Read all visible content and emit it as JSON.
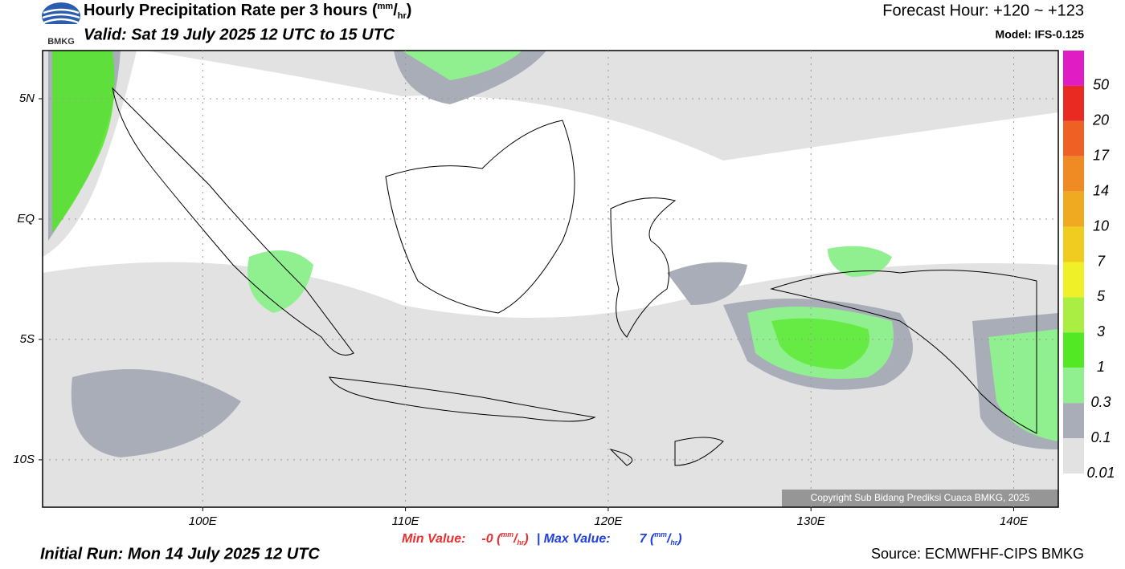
{
  "header": {
    "title": "Hourly Precipitation Rate per 3 hours",
    "unit": [
      "(",
      "mm",
      "/",
      "hr",
      ")"
    ],
    "valid": "Valid: Sat 19 July 2025 12 UTC to 15 UTC",
    "forecast_hour": "Forecast Hour: +120 ~ +123",
    "model": "Model: IFS-0.125",
    "logo_text": "BMKG"
  },
  "map": {
    "lon_range": [
      92.1,
      142.2
    ],
    "lat_range": [
      -11.97,
      7
    ],
    "lon_ticks": [
      {
        "value": 100,
        "label": "100E"
      },
      {
        "value": 110,
        "label": "110E"
      },
      {
        "value": 120,
        "label": "120E"
      },
      {
        "value": 130,
        "label": "130E"
      },
      {
        "value": 140,
        "label": "140E"
      }
    ],
    "lat_ticks": [
      {
        "value": 5,
        "label": "5N"
      },
      {
        "value": 0,
        "label": "EQ"
      },
      {
        "value": -5,
        "label": "5S"
      },
      {
        "value": -10,
        "label": "10S"
      }
    ],
    "copyright": "Copyright Sub Bidang Prediksi Cuaca BMKG, 2025"
  },
  "colorbar": {
    "levels": [
      50,
      20,
      17,
      14,
      10,
      7,
      5,
      3,
      1,
      0.3,
      0.1,
      0.01
    ],
    "colors": [
      "#e01cc4",
      "#e82a22",
      "#ee6024",
      "#f08a22",
      "#f0aa22",
      "#f0cc20",
      "#f0f028",
      "#aaee44",
      "#52e824",
      "#90f090",
      "#a8adb8",
      "#e2e2e2"
    ]
  },
  "footer": {
    "min_label": "Min Value:",
    "min_value": "-0",
    "separator": "|",
    "max_label": "Max Value:",
    "max_value": "7",
    "initial_run": "Initial Run: Mon 14 July 2025 12 UTC",
    "source": "Source: ECMWFHF-CIPS BMKG"
  }
}
